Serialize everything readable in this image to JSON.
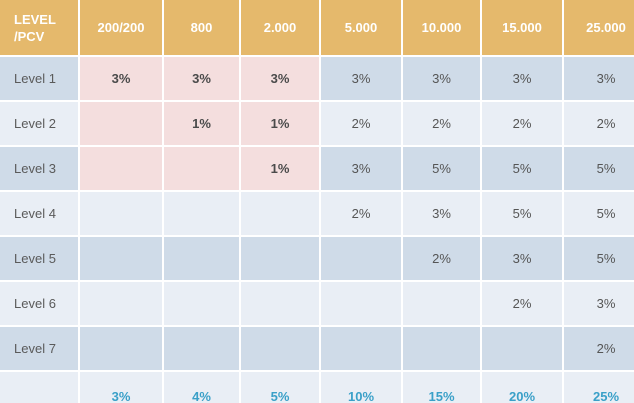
{
  "table": {
    "corner_line1": "LEVEL",
    "corner_line2": "/PCV",
    "columns": [
      "200/200",
      "800",
      "2.000",
      "5.000",
      "10.000",
      "15.000",
      "25.000"
    ],
    "rows": [
      {
        "label": "Level 1",
        "values": [
          "3%",
          "3%",
          "3%",
          "3%",
          "3%",
          "3%",
          "3%"
        ]
      },
      {
        "label": "Level 2",
        "values": [
          "",
          "1%",
          "1%",
          "2%",
          "2%",
          "2%",
          "2%"
        ]
      },
      {
        "label": "Level 3",
        "values": [
          "",
          "",
          "1%",
          "3%",
          "5%",
          "5%",
          "5%"
        ]
      },
      {
        "label": "Level 4",
        "values": [
          "",
          "",
          "",
          "2%",
          "3%",
          "5%",
          "5%"
        ]
      },
      {
        "label": "Level 5",
        "values": [
          "",
          "",
          "",
          "",
          "2%",
          "3%",
          "5%"
        ]
      },
      {
        "label": "Level 6",
        "values": [
          "",
          "",
          "",
          "",
          "",
          "2%",
          "3%"
        ]
      },
      {
        "label": "Level 7",
        "values": [
          "",
          "",
          "",
          "",
          "",
          "",
          "2%"
        ]
      }
    ],
    "totals": [
      "3%",
      "4%",
      "5%",
      "10%",
      "15%",
      "20%",
      "25%"
    ]
  },
  "colors": {
    "header": "#e5b96c",
    "row_dark": "#cfdbe8",
    "row_light": "#e9eef5",
    "highlight": "#f4dede",
    "total_text": "#3aa0c8"
  }
}
